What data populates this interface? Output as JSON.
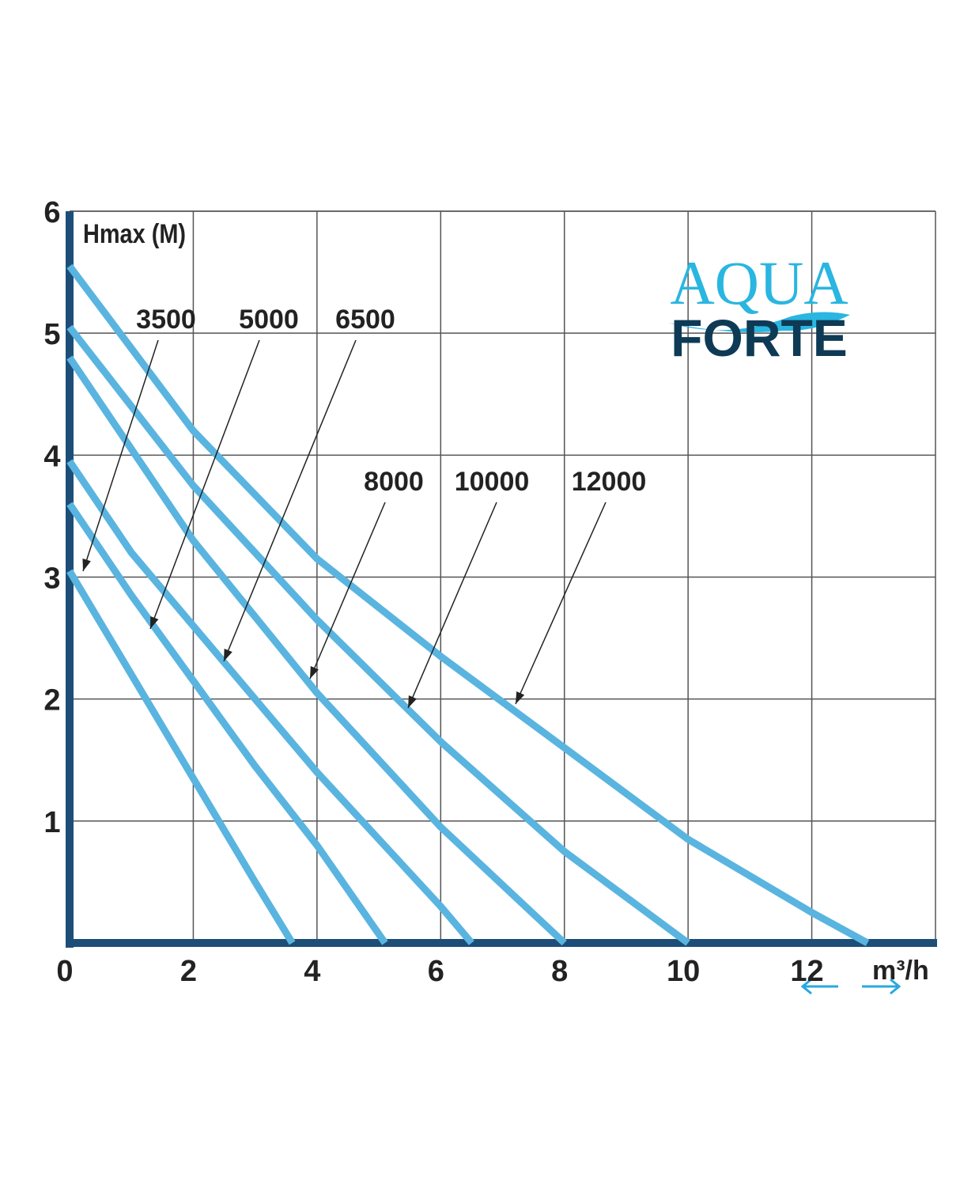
{
  "chart_data": {
    "type": "line",
    "y_label": "Hmax (M)",
    "x_label": "m³/h",
    "xlim": [
      0,
      14
    ],
    "ylim": [
      0,
      6
    ],
    "xticks": [
      0,
      2,
      4,
      6,
      8,
      10,
      12
    ],
    "yticks": [
      1,
      2,
      3,
      4,
      5,
      6
    ],
    "grid": true,
    "series": [
      {
        "name": "3500",
        "color": "#5ab4e0",
        "x": [
          0,
          1,
          2,
          3,
          3.6
        ],
        "values": [
          3.05,
          2.2,
          1.35,
          0.5,
          0
        ]
      },
      {
        "name": "5000",
        "color": "#5ab4e0",
        "x": [
          0,
          1,
          2,
          3,
          4,
          5.1
        ],
        "values": [
          3.6,
          2.85,
          2.15,
          1.45,
          0.8,
          0
        ]
      },
      {
        "name": "6500",
        "color": "#5ab4e0",
        "x": [
          0,
          1,
          2,
          3,
          4,
          5,
          6,
          6.5
        ],
        "values": [
          3.95,
          3.2,
          2.6,
          2.0,
          1.4,
          0.85,
          0.3,
          0
        ]
      },
      {
        "name": "8000",
        "color": "#5ab4e0",
        "x": [
          0,
          2,
          4,
          6,
          8
        ],
        "values": [
          4.8,
          3.3,
          2.05,
          0.95,
          0
        ]
      },
      {
        "name": "10000",
        "color": "#5ab4e0",
        "x": [
          0,
          2,
          4,
          6,
          8,
          10
        ],
        "values": [
          5.05,
          3.75,
          2.65,
          1.65,
          0.75,
          0
        ]
      },
      {
        "name": "12000",
        "color": "#5ab4e0",
        "x": [
          0,
          2,
          4,
          6,
          8,
          10,
          12,
          12.9
        ],
        "values": [
          5.55,
          4.2,
          3.15,
          2.35,
          1.6,
          0.85,
          0.25,
          0
        ]
      }
    ],
    "logo": {
      "line1": "AQUA",
      "line2": "FORTE"
    }
  }
}
